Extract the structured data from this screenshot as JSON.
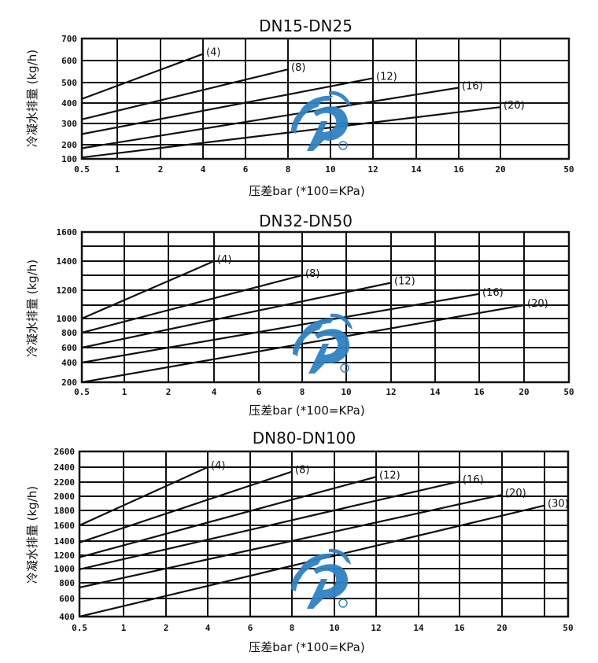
{
  "colors": {
    "grid": "#111111",
    "line": "#111111",
    "logo": "#2f82c3"
  },
  "chart_data": [
    {
      "type": "line",
      "title": "DN15-DN25",
      "xlabel": "压差bar (*100=KPa)",
      "ylabel": "冷凝水排量 (kg/h)",
      "x_ticks": [
        "0.5",
        "1",
        "2",
        "4",
        "6",
        "8",
        "10",
        "12",
        "14",
        "16",
        "20",
        "50"
      ],
      "x_values": [
        0.5,
        1,
        2,
        4,
        6,
        8,
        10,
        12,
        14,
        16,
        20,
        50
      ],
      "y_gridlines": [
        700,
        600,
        500,
        400,
        300,
        200,
        100
      ],
      "y_ticks": [
        "700",
        "600",
        "500",
        "400",
        "300",
        "200",
        "100"
      ],
      "ylim": [
        100,
        700
      ],
      "grid": true,
      "series": [
        {
          "name": "(4)",
          "points": [
            [
              0.5,
              420
            ],
            [
              4,
              630
            ]
          ]
        },
        {
          "name": "(8)",
          "points": [
            [
              0.5,
              320
            ],
            [
              8,
              560
            ]
          ]
        },
        {
          "name": "(12)",
          "points": [
            [
              0.5,
              250
            ],
            [
              12,
              520
            ]
          ]
        },
        {
          "name": "(16)",
          "points": [
            [
              0.5,
              175
            ],
            [
              16,
              475
            ]
          ]
        },
        {
          "name": "(20)",
          "points": [
            [
              0.5,
              110
            ],
            [
              20,
              380
            ]
          ]
        }
      ]
    },
    {
      "type": "line",
      "title": "DN32-DN50",
      "xlabel": "压差bar (*100=KPa)",
      "ylabel": "冷凝水排量 (kg/h)",
      "x_ticks": [
        "0.5",
        "1",
        "2",
        "4",
        "6",
        "8",
        "10",
        "12",
        "14",
        "16",
        "20",
        "50"
      ],
      "x_values": [
        0.5,
        1,
        2,
        4,
        6,
        8,
        10,
        12,
        14,
        16,
        20,
        50
      ],
      "y_gridlines": [
        1600,
        1500,
        1400,
        1300,
        1200,
        1100,
        1000,
        800,
        600,
        400,
        200
      ],
      "y_ticks": [
        "1600",
        "",
        "1400",
        "",
        "1200",
        "",
        "1000",
        "800",
        "600",
        "400",
        "200"
      ],
      "ylim": [
        200,
        1600
      ],
      "grid": true,
      "series": [
        {
          "name": "(4)",
          "points": [
            [
              0.5,
              1000
            ],
            [
              4,
              1400
            ]
          ]
        },
        {
          "name": "(8)",
          "points": [
            [
              0.5,
              800
            ],
            [
              8,
              1300
            ]
          ]
        },
        {
          "name": "(12)",
          "points": [
            [
              0.5,
              600
            ],
            [
              12,
              1250
            ]
          ]
        },
        {
          "name": "(16)",
          "points": [
            [
              0.5,
              400
            ],
            [
              16,
              1175
            ]
          ]
        },
        {
          "name": "(20)",
          "points": [
            [
              0.5,
              200
            ],
            [
              20,
              1100
            ]
          ]
        }
      ]
    },
    {
      "type": "line",
      "title": "DN80-DN100",
      "xlabel": "压差bar (*100=KPa)",
      "ylabel": "冷凝水排量 (kg/h)",
      "x_ticks": [
        "0.5",
        "1",
        "2",
        "4",
        "6",
        "8",
        "10",
        "12",
        "14",
        "16",
        "20",
        "",
        "50"
      ],
      "x_values": [
        0.5,
        1,
        2,
        4,
        6,
        8,
        10,
        12,
        14,
        16,
        20,
        30,
        50
      ],
      "y_gridlines": [
        2600,
        2400,
        2200,
        2000,
        1800,
        1600,
        1400,
        1200,
        1000,
        800,
        600,
        400
      ],
      "y_ticks": [
        "2600",
        "2400",
        "2200",
        "2000",
        "1800",
        "1600",
        "1400",
        "1200",
        "1000",
        "800",
        "600",
        "400"
      ],
      "ylim": [
        400,
        2600
      ],
      "grid": true,
      "series": [
        {
          "name": "(4)",
          "points": [
            [
              0.5,
              1600
            ],
            [
              4,
              2400
            ]
          ]
        },
        {
          "name": "(8)",
          "points": [
            [
              0.5,
              1380
            ],
            [
              8,
              2340
            ]
          ]
        },
        {
          "name": "(12)",
          "points": [
            [
              0.5,
              1170
            ],
            [
              12,
              2270
            ]
          ]
        },
        {
          "name": "(16)",
          "points": [
            [
              0.5,
              990
            ],
            [
              16,
              2210
            ]
          ]
        },
        {
          "name": "(20)",
          "points": [
            [
              0.5,
              740
            ],
            [
              20,
              2020
            ]
          ]
        },
        {
          "name": "(30)",
          "points": [
            [
              0.5,
              400
            ],
            [
              30,
              1870
            ]
          ]
        }
      ]
    }
  ]
}
